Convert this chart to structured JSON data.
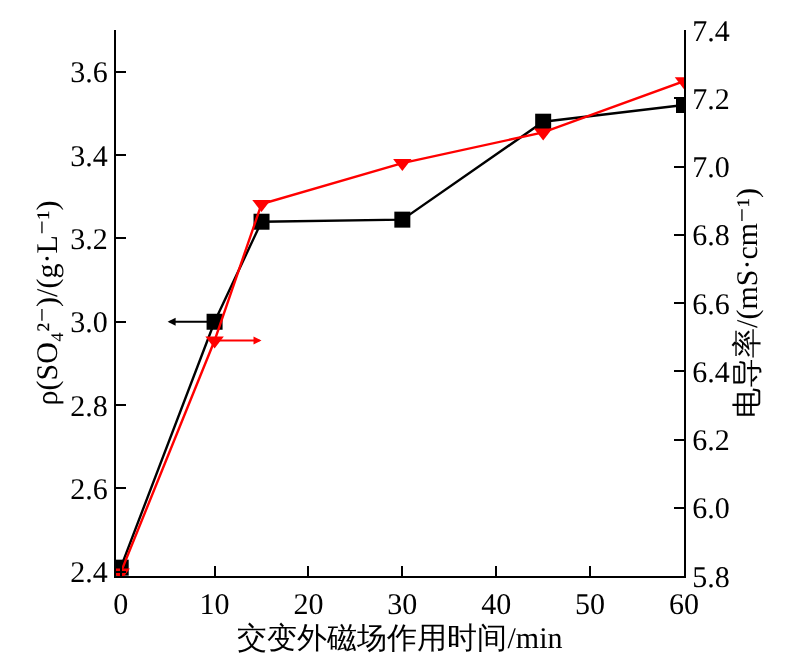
{
  "chart_data": {
    "type": "line",
    "xlabel": "交变外磁场作用时间/min",
    "ylabel": "ρ(SO₄²⁻)/(g·L⁻¹)",
    "y2label": "电导率/(mS·cm⁻¹)",
    "x": [
      0,
      10,
      15,
      30,
      45,
      60
    ],
    "series": [
      {
        "color": "#000000",
        "marker": "square",
        "values": [
          2.41,
          3.0,
          3.24,
          3.245,
          3.48,
          3.52
        ]
      },
      {
        "color": "#ff0000",
        "marker": "triangle",
        "axis": "y2",
        "values": [
          5.81,
          6.49,
          6.89,
          7.01,
          7.1,
          7.25
        ]
      }
    ],
    "xlim": [
      -0.5,
      60
    ],
    "xticks": [
      0,
      10,
      20,
      30,
      40,
      50,
      60
    ],
    "ylim": [
      2.39,
      3.7
    ],
    "yticks": [
      2.4,
      2.6,
      2.8,
      {
        "value": 3,
        "label": "3.0"
      },
      3.2,
      3.4,
      3.6
    ],
    "y2lim": [
      5.8,
      7.4
    ],
    "y2ticks": [
      5.8,
      {
        "value": 6,
        "label": "6.0"
      },
      6.2,
      6.4,
      6.6,
      6.8,
      {
        "value": 7,
        "label": "7.0"
      },
      7.2,
      7.4
    ],
    "line_style": "solid"
  }
}
